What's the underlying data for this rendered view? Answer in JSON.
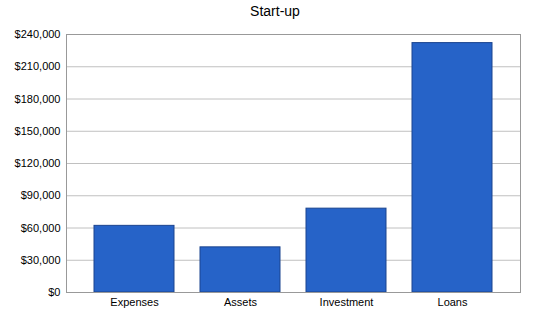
{
  "chart_data": {
    "type": "bar",
    "title": "Start-up",
    "categories": [
      "Expenses",
      "Assets",
      "Investment",
      "Loans"
    ],
    "values": [
      62000,
      42000,
      78000,
      232000
    ],
    "color": "#2663c8",
    "ylim": [
      0,
      240000
    ],
    "yticks": [
      {
        "value": 0,
        "label": "$0"
      },
      {
        "value": 30000,
        "label": "$30,000"
      },
      {
        "value": 60000,
        "label": "$60,000"
      },
      {
        "value": 90000,
        "label": "$90,000"
      },
      {
        "value": 120000,
        "label": "$120,000"
      },
      {
        "value": 150000,
        "label": "$150,000"
      },
      {
        "value": 180000,
        "label": "$180,000"
      },
      {
        "value": 210000,
        "label": "$210,000"
      },
      {
        "value": 240000,
        "label": "$240,000"
      }
    ],
    "grid": true
  }
}
